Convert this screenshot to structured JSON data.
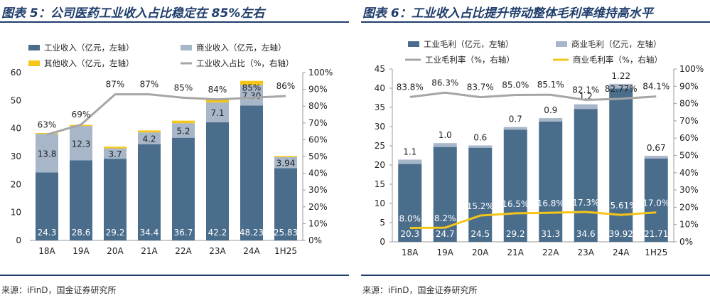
{
  "left": {
    "title": "图表 5：公司医药工业收入占比稳定在 85%左右",
    "source": "来源：iFinD，国金证券研究所",
    "legend": {
      "industrial": "工业收入（亿元，左轴）",
      "commercial": "商业收入（亿元，左轴）",
      "other": "其他收入（亿元，左轴）",
      "ratio": "工业收入占比（%，右轴）"
    }
  },
  "right": {
    "title": "图表 6：工业收入占比提升带动整体毛利率维持高水平",
    "source": "来源：iFinD，国金证券研究所",
    "legend": {
      "ind_profit": "工业毛利（亿元，左轴）",
      "com_profit": "商业毛利（亿元，左轴）",
      "ind_margin": "工业毛利率（%，右轴）",
      "com_margin": "商业毛利率（%，右轴）"
    }
  },
  "colors": {
    "navy": "#4a6d8c",
    "lightblue": "#a7b6c9",
    "yellow": "#f5c518",
    "gray": "#a6a6a6",
    "title": "#1f3d6b"
  },
  "chart_data": [
    {
      "type": "bar",
      "stacked": true,
      "categories": [
        "18A",
        "19A",
        "20A",
        "21A",
        "22A",
        "23A",
        "24A",
        "1H25"
      ],
      "series": [
        {
          "name": "工业收入（亿元，左轴）",
          "values": [
            24.3,
            28.6,
            29.2,
            34.4,
            36.7,
            42.2,
            48.23,
            25.83
          ],
          "labels": [
            "24.3",
            "28.6",
            "29.2",
            "34.4",
            "36.7",
            "42.2",
            "48.23",
            "25.83"
          ]
        },
        {
          "name": "商业收入（亿元，左轴）",
          "values": [
            13.8,
            12.3,
            3.7,
            4.2,
            5.2,
            7.1,
            7.3,
            3.94
          ],
          "labels": [
            "13.8",
            "12.3",
            "3.7",
            "4.2",
            "5.2",
            "7.1",
            "7.30",
            "3.94"
          ]
        },
        {
          "name": "其他收入（亿元，左轴）",
          "values": [
            0.3,
            0.4,
            0.6,
            0.7,
            0.9,
            1.0,
            1.5,
            0.4
          ]
        },
        {
          "name": "工业收入占比（%，右轴）",
          "type": "line",
          "axis": "right",
          "values": [
            63,
            69,
            87,
            87,
            85,
            84,
            85,
            86
          ],
          "labels": [
            "63%",
            "69%",
            "87%",
            "87%",
            "85%",
            "84%",
            "85%",
            "86%"
          ]
        }
      ],
      "yleft": {
        "min": 0,
        "max": 60,
        "ticks": [
          "0",
          "10",
          "20",
          "30",
          "40",
          "50",
          "60"
        ]
      },
      "yright": {
        "min": 0,
        "max": 100,
        "ticks": [
          "0%",
          "10%",
          "20%",
          "30%",
          "40%",
          "50%",
          "60%",
          "70%",
          "80%",
          "90%",
          "100%"
        ]
      },
      "grid": false,
      "legend_position": "top"
    },
    {
      "type": "bar",
      "stacked": true,
      "categories": [
        "18A",
        "19A",
        "20A",
        "21A",
        "22A",
        "23A",
        "24A",
        "1H25"
      ],
      "series": [
        {
          "name": "工业毛利（亿元，左轴）",
          "values": [
            20.3,
            24.7,
            24.5,
            29.2,
            31.3,
            34.6,
            39.92,
            21.71
          ],
          "labels": [
            "20.3",
            "24.7",
            "24.5",
            "29.2",
            "31.3",
            "34.6",
            "39.92",
            "21.71"
          ]
        },
        {
          "name": "商业毛利（亿元，左轴）",
          "values": [
            1.1,
            1.0,
            0.6,
            0.7,
            0.9,
            1.2,
            1.22,
            0.67
          ],
          "labels": [
            "1.1",
            "1.0",
            "0.6",
            "0.7",
            "0.9",
            "1.2",
            "1.22",
            "0.67"
          ]
        },
        {
          "name": "工业毛利率（%，右轴）",
          "type": "line",
          "axis": "right",
          "values": [
            83.8,
            86.3,
            83.7,
            85.0,
            85.1,
            82.1,
            82.77,
            84.1
          ],
          "labels": [
            "83.8%",
            "86.3%",
            "83.7%",
            "85.0%",
            "85.1%",
            "82.1%",
            "82.77%",
            "84.1%"
          ]
        },
        {
          "name": "商业毛利率（%，右轴）",
          "type": "line",
          "axis": "right",
          "values": [
            8.0,
            8.2,
            15.2,
            16.5,
            16.8,
            17.3,
            15.61,
            17.0
          ],
          "labels": [
            "8.0%",
            "8.2%",
            "15.2%",
            "16.5%",
            "16.8%",
            "17.3%",
            "15.61%",
            "17.0%"
          ]
        }
      ],
      "yleft": {
        "min": 0,
        "max": 45,
        "ticks": [
          "0",
          "5",
          "10",
          "15",
          "20",
          "25",
          "30",
          "35",
          "40",
          "45"
        ]
      },
      "yright": {
        "min": 0,
        "max": 100,
        "ticks": [
          "0%",
          "10%",
          "20%",
          "30%",
          "40%",
          "50%",
          "60%",
          "70%",
          "80%",
          "90%",
          "100%"
        ]
      },
      "grid": false,
      "legend_position": "top"
    }
  ]
}
